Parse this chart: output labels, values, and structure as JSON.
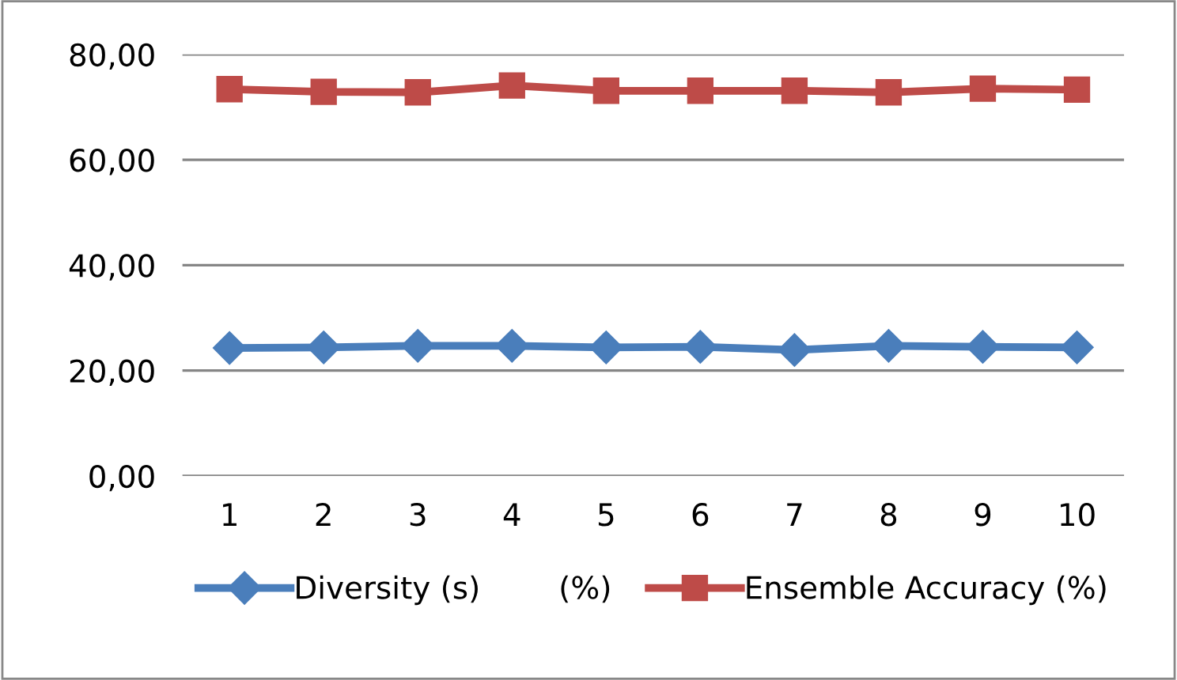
{
  "chart_data": {
    "type": "line",
    "categories": [
      "1",
      "2",
      "3",
      "4",
      "5",
      "6",
      "7",
      "8",
      "9",
      "10"
    ],
    "series": [
      {
        "name": "Diversity (s)        (%)",
        "color": "#4a7ebb",
        "marker": "diamond",
        "values": [
          24.3,
          24.4,
          24.7,
          24.7,
          24.4,
          24.5,
          23.9,
          24.7,
          24.5,
          24.4
        ]
      },
      {
        "name": "Ensemble Accuracy (%)",
        "color": "#be4b48",
        "marker": "square",
        "values": [
          73.4,
          72.9,
          72.8,
          74.1,
          73.1,
          73.1,
          73.1,
          72.8,
          73.5,
          73.3
        ]
      }
    ],
    "ylim": [
      0,
      80
    ],
    "yticks": [
      {
        "value": 0,
        "label": "0,00"
      },
      {
        "value": 20,
        "label": "20,00"
      },
      {
        "value": 40,
        "label": "40,00"
      },
      {
        "value": 60,
        "label": "60,00"
      },
      {
        "value": 80,
        "label": "80,00"
      }
    ],
    "grid": "y",
    "legend": "bottom",
    "line_style": "solid"
  }
}
